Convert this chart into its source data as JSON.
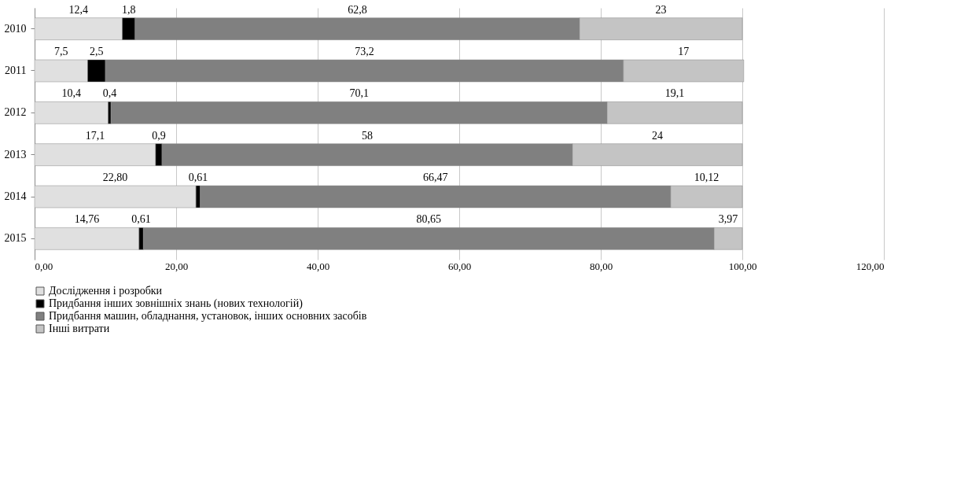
{
  "chart_data": {
    "type": "bar",
    "orientation": "horizontal",
    "stacked": true,
    "categories": [
      "2010",
      "2011",
      "2012",
      "2013",
      "2014",
      "2015"
    ],
    "series": [
      {
        "name": "Дослідження і розробки",
        "color": "#e0e0e0",
        "values": [
          12.4,
          7.5,
          10.4,
          17.1,
          22.8,
          14.76
        ],
        "value_labels": [
          "12,4",
          "7,5",
          "10,4",
          "17,1",
          "22,80",
          "14,76"
        ]
      },
      {
        "name": "Придбання інших зовнішніх знань (нових технологій)",
        "color": "#000000",
        "values": [
          1.8,
          2.5,
          0.4,
          0.9,
          0.61,
          0.61
        ],
        "value_labels": [
          "1,8",
          "2,5",
          "0,4",
          "0,9",
          "0,61",
          "0,61"
        ]
      },
      {
        "name": "Придбання машин, обладнання, установок, інших основних засобів",
        "color": "#808080",
        "values": [
          62.8,
          73.2,
          70.1,
          58,
          66.47,
          80.65
        ],
        "value_labels": [
          "62,8",
          "73,2",
          "70,1",
          "58",
          "66,47",
          "80,65"
        ]
      },
      {
        "name": "Інші витрати",
        "color": "#c4c4c4",
        "values": [
          23,
          17,
          19.1,
          24,
          10.12,
          3.97
        ],
        "value_labels": [
          "23",
          "17",
          "19,1",
          "24",
          "10,12",
          "3,97"
        ]
      }
    ],
    "xlim": [
      0,
      120
    ],
    "xticks": [
      {
        "value": 0,
        "label": "0,00"
      },
      {
        "value": 20,
        "label": "20,00"
      },
      {
        "value": 40,
        "label": "40,00"
      },
      {
        "value": 60,
        "label": "60,00"
      },
      {
        "value": 80,
        "label": "80,00"
      },
      {
        "value": 100,
        "label": "100,00"
      },
      {
        "value": 120,
        "label": "120,00"
      }
    ],
    "grid": "x",
    "legend": "bottom"
  }
}
